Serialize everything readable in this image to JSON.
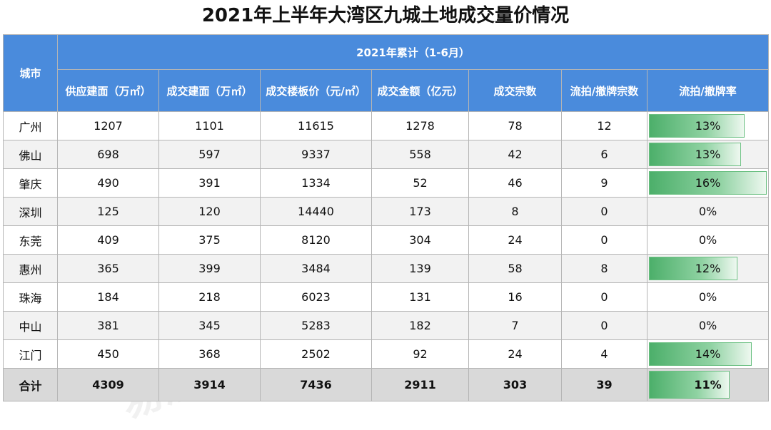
{
  "title": "2021年上半年大湾区九城土地成交量价情况",
  "header": {
    "city_label": "城市",
    "group_label": "2021年累计（1-6月）",
    "columns": [
      "供应建面（万㎡）",
      "成交建面（万㎡）",
      "成交楼板价（元/㎡）",
      "成交金额（亿元）",
      "成交宗数",
      "流拍/撤牌宗数",
      "流拍/撤牌率"
    ]
  },
  "rows": [
    {
      "city": "广州",
      "supply": "1207",
      "deal_area": "1101",
      "floor_price": "11615",
      "amount": "1278",
      "count": "78",
      "failed": "12",
      "rate": "13%",
      "rate_value": 0.13
    },
    {
      "city": "佛山",
      "supply": "698",
      "deal_area": "597",
      "floor_price": "9337",
      "amount": "558",
      "count": "42",
      "failed": "6",
      "rate": "13%",
      "rate_value": 0.125
    },
    {
      "city": "肇庆",
      "supply": "490",
      "deal_area": "391",
      "floor_price": "1334",
      "amount": "52",
      "count": "46",
      "failed": "9",
      "rate": "16%",
      "rate_value": 0.16
    },
    {
      "city": "深圳",
      "supply": "125",
      "deal_area": "120",
      "floor_price": "14440",
      "amount": "173",
      "count": "8",
      "failed": "0",
      "rate": "0%",
      "rate_value": 0
    },
    {
      "city": "东莞",
      "supply": "409",
      "deal_area": "375",
      "floor_price": "8120",
      "amount": "304",
      "count": "24",
      "failed": "0",
      "rate": "0%",
      "rate_value": 0
    },
    {
      "city": "惠州",
      "supply": "365",
      "deal_area": "399",
      "floor_price": "3484",
      "amount": "139",
      "count": "58",
      "failed": "8",
      "rate": "12%",
      "rate_value": 0.12
    },
    {
      "city": "珠海",
      "supply": "184",
      "deal_area": "218",
      "floor_price": "6023",
      "amount": "131",
      "count": "16",
      "failed": "0",
      "rate": "0%",
      "rate_value": 0
    },
    {
      "city": "中山",
      "supply": "381",
      "deal_area": "345",
      "floor_price": "5283",
      "amount": "182",
      "count": "7",
      "failed": "0",
      "rate": "0%",
      "rate_value": 0
    },
    {
      "city": "江门",
      "supply": "450",
      "deal_area": "368",
      "floor_price": "2502",
      "amount": "92",
      "count": "24",
      "failed": "4",
      "rate": "14%",
      "rate_value": 0.14
    }
  ],
  "total": {
    "city": "合计",
    "supply": "4309",
    "deal_area": "3914",
    "floor_price": "7436",
    "amount": "2911",
    "count": "303",
    "failed": "39",
    "rate": "11%",
    "rate_value": 0.11
  },
  "rate_scale_max": 0.16,
  "watermark": "易居企业集团·克而瑞",
  "colors": {
    "header_bg": "#4a8bdc",
    "bar_green": "#4caf6a"
  }
}
